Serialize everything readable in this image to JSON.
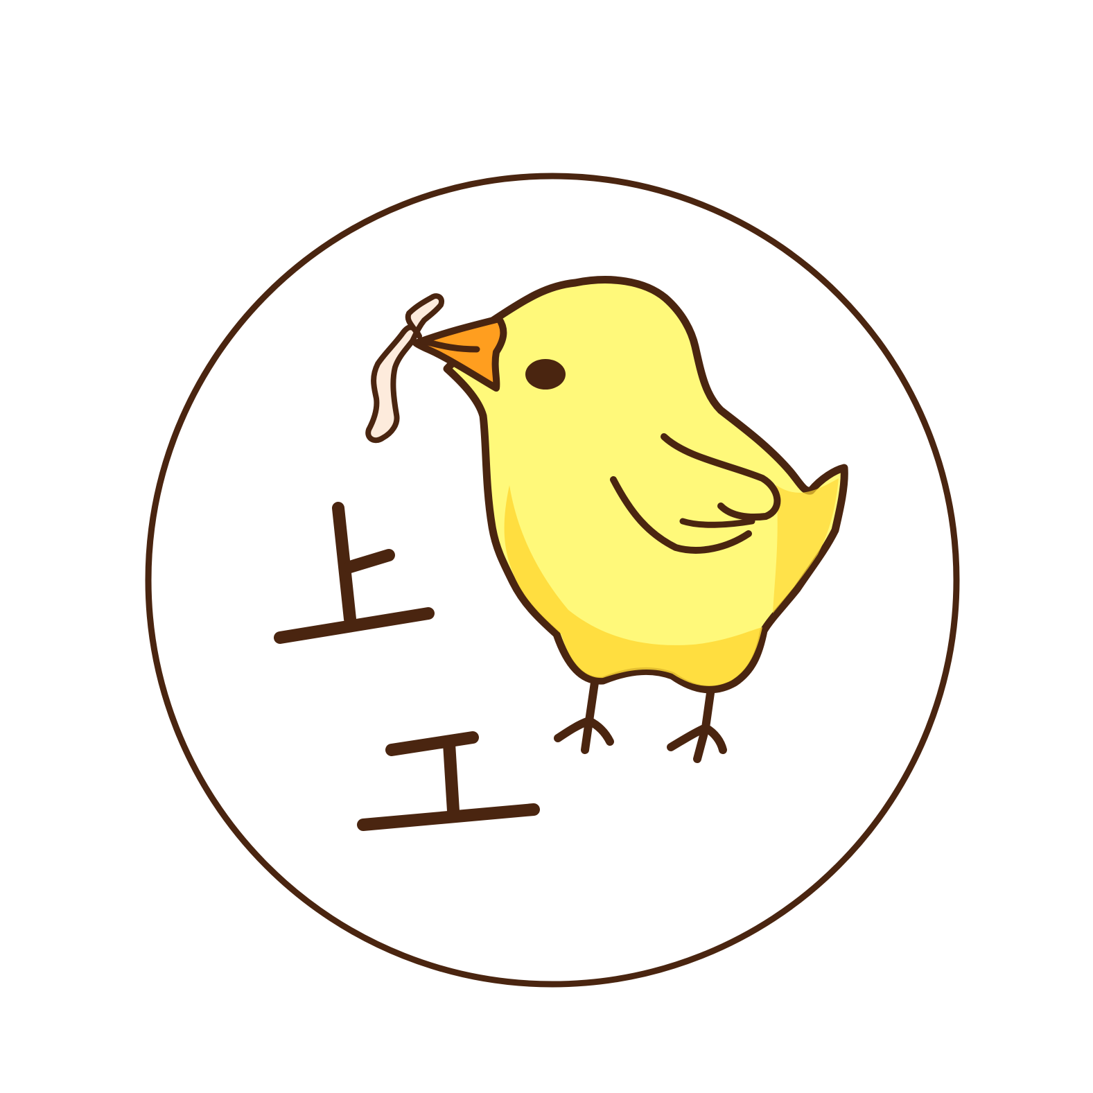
{
  "logo": {
    "glyphs": [
      "上",
      "工"
    ],
    "colors": {
      "background": "#ffffff",
      "ink": "#4a2510",
      "chick_body": "#fff97a",
      "chick_shade": "#ffd936",
      "beak": "#ff9e1f",
      "worm": "#fdebdc"
    },
    "icons": [
      "chick-mascot-icon",
      "worm-icon"
    ]
  }
}
